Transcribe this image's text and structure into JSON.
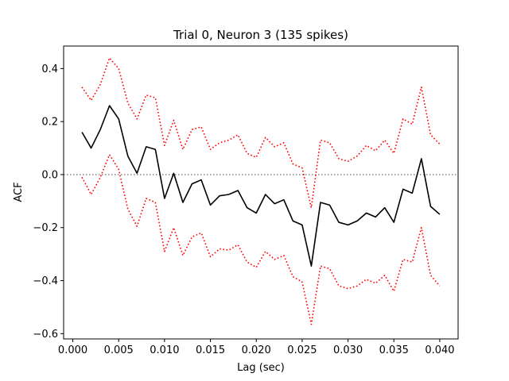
{
  "chart_data": {
    "type": "line",
    "title": "Trial 0, Neuron 3 (135 spikes)",
    "xlabel": "Lag (sec)",
    "ylabel": "ACF",
    "xlim": [
      -0.001,
      0.042
    ],
    "ylim": [
      -0.62,
      0.485
    ],
    "xticks": [
      0.0,
      0.005,
      0.01,
      0.015,
      0.02,
      0.025,
      0.03,
      0.035,
      0.04
    ],
    "xtick_labels": [
      "0.000",
      "0.005",
      "0.010",
      "0.015",
      "0.020",
      "0.025",
      "0.030",
      "0.035",
      "0.040"
    ],
    "yticks": [
      0.4,
      0.2,
      0.0,
      -0.2,
      -0.4,
      -0.6
    ],
    "ytick_labels": [
      "0.4",
      "0.2",
      "0.0",
      "−0.2",
      "−0.4",
      "−0.6"
    ],
    "grid": false,
    "x": [
      0.001,
      0.002,
      0.003,
      0.004,
      0.005,
      0.006,
      0.007,
      0.008,
      0.009,
      0.01,
      0.011,
      0.012,
      0.013,
      0.014,
      0.015,
      0.016,
      0.017,
      0.018,
      0.019,
      0.02,
      0.021,
      0.022,
      0.023,
      0.024,
      0.025,
      0.026,
      0.027,
      0.028,
      0.029,
      0.03,
      0.031,
      0.032,
      0.033,
      0.034,
      0.035,
      0.036,
      0.037,
      0.038,
      0.039,
      0.04
    ],
    "series": [
      {
        "color": "#000000",
        "style": "solid",
        "values": [
          0.16,
          0.1,
          0.17,
          0.26,
          0.21,
          0.07,
          0.005,
          0.105,
          0.095,
          -0.09,
          0.005,
          -0.105,
          -0.035,
          -0.02,
          -0.115,
          -0.08,
          -0.075,
          -0.06,
          -0.125,
          -0.145,
          -0.075,
          -0.11,
          -0.095,
          -0.175,
          -0.19,
          -0.345,
          -0.105,
          -0.115,
          -0.18,
          -0.19,
          -0.175,
          -0.145,
          -0.16,
          -0.125,
          -0.18,
          -0.055,
          -0.07,
          0.06,
          -0.12,
          -0.15
        ]
      },
      {
        "color": "#ff0000",
        "style": "dotted",
        "values": [
          0.33,
          0.28,
          0.34,
          0.44,
          0.4,
          0.27,
          0.21,
          0.3,
          0.29,
          0.11,
          0.205,
          0.095,
          0.17,
          0.18,
          0.095,
          0.12,
          0.13,
          0.15,
          0.08,
          0.065,
          0.14,
          0.105,
          0.12,
          0.04,
          0.025,
          -0.125,
          0.13,
          0.12,
          0.06,
          0.05,
          0.07,
          0.11,
          0.09,
          0.13,
          0.08,
          0.21,
          0.19,
          0.33,
          0.15,
          0.115
        ]
      },
      {
        "color": "#ff0000",
        "style": "dotted",
        "values": [
          -0.01,
          -0.075,
          -0.01,
          0.075,
          0.02,
          -0.13,
          -0.195,
          -0.09,
          -0.105,
          -0.29,
          -0.2,
          -0.305,
          -0.235,
          -0.22,
          -0.31,
          -0.28,
          -0.285,
          -0.265,
          -0.33,
          -0.35,
          -0.29,
          -0.32,
          -0.305,
          -0.385,
          -0.405,
          -0.565,
          -0.345,
          -0.355,
          -0.42,
          -0.43,
          -0.42,
          -0.395,
          -0.41,
          -0.38,
          -0.44,
          -0.32,
          -0.33,
          -0.2,
          -0.38,
          -0.42
        ]
      }
    ],
    "reference_line": {
      "y": 0.0,
      "color": "#808080",
      "style": "dotted"
    }
  }
}
